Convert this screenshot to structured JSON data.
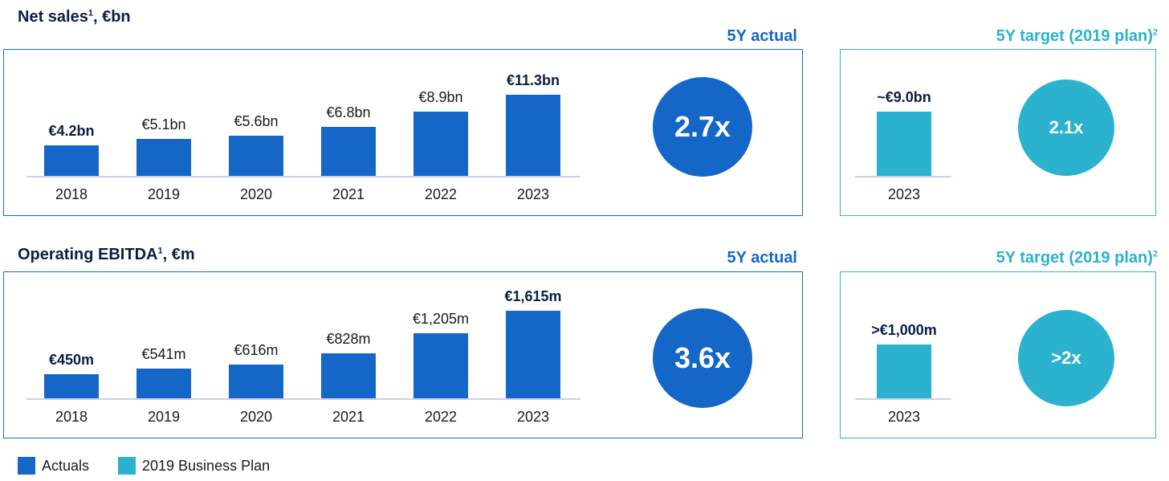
{
  "colors": {
    "actual": "#1466c7",
    "target": "#2bb2cf",
    "title": "#0a1f44"
  },
  "sections": [
    {
      "title": "Net sales",
      "title_sup": "1",
      "title_unit": ", €bn",
      "actual_header": "5Y actual",
      "target_header": "5Y target (2019 plan)",
      "target_header_sup": "2",
      "multiplier": "2.7x",
      "target_multiplier": "2.1x",
      "target_label": "~€9.0bn",
      "target_category": "2023"
    },
    {
      "title": "Operating EBITDA",
      "title_sup": "1",
      "title_unit": ", €m",
      "actual_header": "5Y actual",
      "target_header": "5Y target (2019 plan)",
      "target_header_sup": "2",
      "multiplier": "3.6x",
      "target_multiplier": ">2x",
      "target_label": ">€1,000m",
      "target_category": "2023"
    }
  ],
  "legend": [
    {
      "label": "Actuals",
      "color": "#1466c7"
    },
    {
      "label": "2019 Business Plan",
      "color": "#2bb2cf"
    }
  ],
  "chart_data": [
    {
      "type": "bar",
      "title": "Net sales¹, €bn",
      "categories": [
        "2018",
        "2019",
        "2020",
        "2021",
        "2022",
        "2023"
      ],
      "values": [
        4.2,
        5.1,
        5.6,
        6.8,
        8.9,
        11.3
      ],
      "labels": [
        "€4.2bn",
        "€5.1bn",
        "€5.6bn",
        "€6.8bn",
        "€8.9bn",
        "€11.3bn"
      ],
      "bold": [
        true,
        false,
        false,
        false,
        false,
        true
      ]
    },
    {
      "type": "bar",
      "title": "Net sales 5Y target",
      "categories": [
        "2023"
      ],
      "values": [
        9.0
      ],
      "labels": [
        "~€9.0bn"
      ]
    },
    {
      "type": "bar",
      "title": "Operating EBITDA¹, €m",
      "categories": [
        "2018",
        "2019",
        "2020",
        "2021",
        "2022",
        "2023"
      ],
      "values": [
        450,
        541,
        616,
        828,
        1205,
        1615
      ],
      "labels": [
        "€450m",
        "€541m",
        "€616m",
        "€828m",
        "€1,205m",
        "€1,615m"
      ],
      "bold": [
        true,
        false,
        false,
        false,
        false,
        true
      ]
    },
    {
      "type": "bar",
      "title": "Operating EBITDA 5Y target",
      "categories": [
        "2023"
      ],
      "values": [
        1000
      ],
      "labels": [
        ">€1,000m"
      ]
    }
  ]
}
